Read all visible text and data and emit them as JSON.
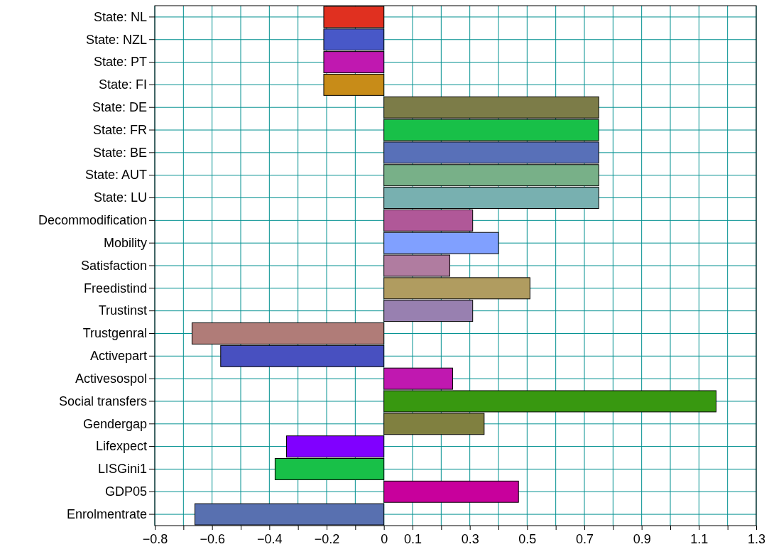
{
  "chart_data": {
    "type": "bar",
    "orientation": "horizontal",
    "grid": true,
    "categories": [
      "State: NL",
      "State: NZL",
      "State: PT",
      "State: FI",
      "State: DE",
      "State: FR",
      "State: BE",
      "State: AUT",
      "State: LU",
      "Decommodification",
      "Mobility",
      "Satisfaction",
      "Freedistind",
      "Trustinst",
      "Trustgenral",
      "Activepart",
      "Activesospol",
      "Social transfers",
      "Gendergap",
      "Lifexpect",
      "LISGini1",
      "GDP05",
      "Enrolmentrate"
    ],
    "values": [
      -0.21,
      -0.21,
      -0.21,
      -0.21,
      0.75,
      0.75,
      0.75,
      0.75,
      0.75,
      0.31,
      0.4,
      0.23,
      0.51,
      0.31,
      -0.67,
      -0.57,
      0.24,
      1.16,
      0.35,
      -0.34,
      -0.38,
      0.47,
      -0.66
    ],
    "colors": [
      "#e03020",
      "#4858c8",
      "#c018b0",
      "#c88c18",
      "#7c7c48",
      "#18c048",
      "#5870b8",
      "#78b088",
      "#78b0b0",
      "#b05898",
      "#80a0ff",
      "#b07ca0",
      "#b09c60",
      "#9880b0",
      "#b07c78",
      "#4850c0",
      "#c018b0",
      "#389810",
      "#808040",
      "#8000ff",
      "#18c048",
      "#c8009c",
      "#5870b0"
    ],
    "xlim": [
      -0.8,
      1.3
    ],
    "xticks": [
      -0.8,
      {
        "value": -0.7,
        "label": null
      },
      -0.6,
      {
        "value": -0.5,
        "label": null
      },
      -0.4,
      {
        "value": -0.3,
        "label": null
      },
      -0.2,
      {
        "value": -0.1,
        "label": null
      },
      0,
      0.1,
      {
        "value": 0.2,
        "label": null
      },
      0.3,
      {
        "value": 0.4,
        "label": null
      },
      0.5,
      {
        "value": 0.6,
        "label": null
      },
      0.7,
      {
        "value": 0.8,
        "label": null
      },
      0.9,
      {
        "value": 1.0,
        "label": null
      },
      1.1,
      {
        "value": 1.2,
        "label": null
      },
      1.3
    ]
  }
}
